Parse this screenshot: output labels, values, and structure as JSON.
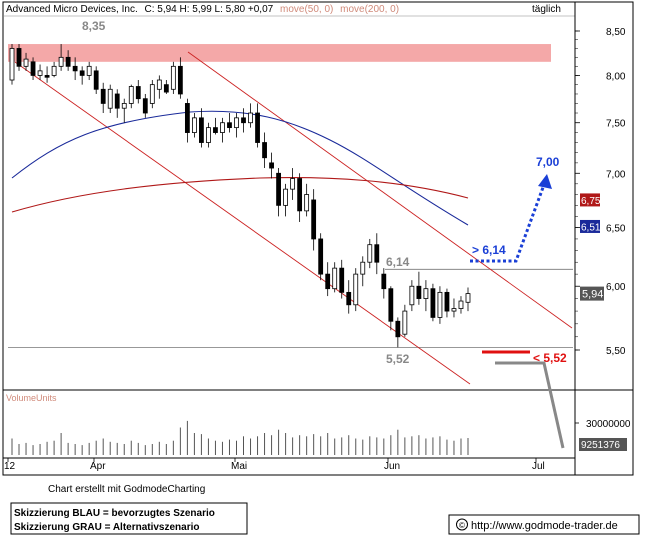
{
  "header": {
    "company": "Advanced Micro Devices, Inc.",
    "quote": "C: 5,94 H: 5,99 L: 5,80 +0,07",
    "ma50_label": "move(50, 0)",
    "ma200_label": "move(200, 0)",
    "period": "täglich"
  },
  "footer": {
    "credit": "Chart erstellt mit GodmodeCharting",
    "legend_blue": "Skizzierung BLAU = bevorzugtes Szenario",
    "legend_grey": "Skizzierung GRAU = Alternativszenario",
    "website": "http://www.godmode-trader.de",
    "copyright_symbol": "©"
  },
  "volume_panel": {
    "title": "VolumeUnits",
    "axis_label": "30000000",
    "last_value_label": "9251376",
    "last_value": 9251376,
    "axis_max": 30000000
  },
  "chart_data": {
    "type": "candlestick",
    "title": "Advanced Micro Devices, Inc.",
    "ylim": [
      5.2,
      8.6
    ],
    "yscale": "log",
    "y_ticks": [
      "8,50",
      "8,00",
      "7,50",
      "7,00",
      "6,50",
      "6,00",
      "5,50"
    ],
    "y_tick_values": [
      8.5,
      8.0,
      7.5,
      7.0,
      6.5,
      6.0,
      5.5
    ],
    "x_ticks": [
      "12",
      "Apr",
      "Mai",
      "Jun",
      "Jul"
    ],
    "grid": false,
    "last_close": 5.94,
    "last_close_label": "5,94",
    "ma50_last": 6.51,
    "ma50_last_label": "6,51",
    "ma200_last": 6.75,
    "ma200_last_label": "6,75",
    "ma50_color": "#1a2a9a",
    "ma200_color": "#b01818",
    "resistance_zone": [
      8.15,
      8.35
    ],
    "annotations": {
      "high_label": "8,35",
      "resistance_label": "6,14",
      "support_label": "5,52",
      "target_blue_label": "7,00",
      "breakout_label": "> 6,14",
      "breakdown_label": "< 5,52"
    },
    "levels": {
      "resistance": 6.14,
      "support": 5.52,
      "target": 7.0,
      "high": 8.35
    },
    "candles": [
      {
        "o": 7.95,
        "h": 8.35,
        "l": 7.9,
        "c": 8.3
      },
      {
        "o": 8.3,
        "h": 8.35,
        "l": 8.05,
        "c": 8.1
      },
      {
        "o": 8.1,
        "h": 8.25,
        "l": 8.05,
        "c": 8.18
      },
      {
        "o": 8.15,
        "h": 8.2,
        "l": 7.95,
        "c": 8.0
      },
      {
        "o": 8.0,
        "h": 8.12,
        "l": 7.95,
        "c": 8.05
      },
      {
        "o": 8.0,
        "h": 8.1,
        "l": 7.92,
        "c": 7.98
      },
      {
        "o": 8.0,
        "h": 8.15,
        "l": 7.98,
        "c": 8.1
      },
      {
        "o": 8.1,
        "h": 8.35,
        "l": 8.05,
        "c": 8.2
      },
      {
        "o": 8.2,
        "h": 8.28,
        "l": 8.05,
        "c": 8.1
      },
      {
        "o": 8.1,
        "h": 8.2,
        "l": 7.95,
        "c": 8.05
      },
      {
        "o": 8.05,
        "h": 8.1,
        "l": 7.9,
        "c": 8.0
      },
      {
        "o": 8.0,
        "h": 8.15,
        "l": 7.95,
        "c": 8.1
      },
      {
        "o": 8.05,
        "h": 8.1,
        "l": 7.8,
        "c": 7.85
      },
      {
        "o": 7.85,
        "h": 7.92,
        "l": 7.6,
        "c": 7.7
      },
      {
        "o": 7.65,
        "h": 7.9,
        "l": 7.6,
        "c": 7.85
      },
      {
        "o": 7.8,
        "h": 7.85,
        "l": 7.55,
        "c": 7.65
      },
      {
        "o": 7.65,
        "h": 7.75,
        "l": 7.5,
        "c": 7.7
      },
      {
        "o": 7.7,
        "h": 7.9,
        "l": 7.65,
        "c": 7.88
      },
      {
        "o": 7.88,
        "h": 7.95,
        "l": 7.7,
        "c": 7.75
      },
      {
        "o": 7.75,
        "h": 7.8,
        "l": 7.55,
        "c": 7.6
      },
      {
        "o": 7.7,
        "h": 7.95,
        "l": 7.65,
        "c": 7.9
      },
      {
        "o": 7.85,
        "h": 8.0,
        "l": 7.75,
        "c": 7.95
      },
      {
        "o": 7.9,
        "h": 7.95,
        "l": 7.8,
        "c": 7.82
      },
      {
        "o": 7.85,
        "h": 8.15,
        "l": 7.8,
        "c": 8.1
      },
      {
        "o": 8.1,
        "h": 8.2,
        "l": 7.75,
        "c": 7.8
      },
      {
        "o": 7.7,
        "h": 7.75,
        "l": 7.3,
        "c": 7.4
      },
      {
        "o": 7.4,
        "h": 7.6,
        "l": 7.35,
        "c": 7.55
      },
      {
        "o": 7.55,
        "h": 7.65,
        "l": 7.25,
        "c": 7.3
      },
      {
        "o": 7.3,
        "h": 7.5,
        "l": 7.25,
        "c": 7.45
      },
      {
        "o": 7.45,
        "h": 7.55,
        "l": 7.38,
        "c": 7.4
      },
      {
        "o": 7.4,
        "h": 7.55,
        "l": 7.3,
        "c": 7.5
      },
      {
        "o": 7.5,
        "h": 7.6,
        "l": 7.4,
        "c": 7.45
      },
      {
        "o": 7.45,
        "h": 7.6,
        "l": 7.35,
        "c": 7.55
      },
      {
        "o": 7.55,
        "h": 7.65,
        "l": 7.4,
        "c": 7.5
      },
      {
        "o": 7.5,
        "h": 7.7,
        "l": 7.45,
        "c": 7.6
      },
      {
        "o": 7.6,
        "h": 7.7,
        "l": 7.25,
        "c": 7.3
      },
      {
        "o": 7.3,
        "h": 7.4,
        "l": 7.05,
        "c": 7.15
      },
      {
        "o": 7.1,
        "h": 7.2,
        "l": 6.95,
        "c": 7.05
      },
      {
        "o": 7.0,
        "h": 7.05,
        "l": 6.6,
        "c": 6.7
      },
      {
        "o": 6.7,
        "h": 6.9,
        "l": 6.6,
        "c": 6.85
      },
      {
        "o": 6.85,
        "h": 7.05,
        "l": 6.75,
        "c": 6.95
      },
      {
        "o": 6.95,
        "h": 7.0,
        "l": 6.55,
        "c": 6.65
      },
      {
        "o": 6.65,
        "h": 6.9,
        "l": 6.6,
        "c": 6.8
      },
      {
        "o": 6.75,
        "h": 6.85,
        "l": 6.3,
        "c": 6.4
      },
      {
        "o": 6.4,
        "h": 6.45,
        "l": 6.05,
        "c": 6.1
      },
      {
        "o": 6.1,
        "h": 6.2,
        "l": 5.92,
        "c": 5.98
      },
      {
        "o": 5.98,
        "h": 6.2,
        "l": 5.95,
        "c": 6.15
      },
      {
        "o": 6.15,
        "h": 6.22,
        "l": 5.9,
        "c": 5.95
      },
      {
        "o": 5.95,
        "h": 6.05,
        "l": 5.78,
        "c": 5.85
      },
      {
        "o": 5.85,
        "h": 6.15,
        "l": 5.8,
        "c": 6.1
      },
      {
        "o": 6.1,
        "h": 6.25,
        "l": 6.0,
        "c": 6.2
      },
      {
        "o": 6.2,
        "h": 6.4,
        "l": 6.15,
        "c": 6.35
      },
      {
        "o": 6.35,
        "h": 6.45,
        "l": 6.1,
        "c": 6.2
      },
      {
        "o": 6.1,
        "h": 6.15,
        "l": 5.9,
        "c": 5.98
      },
      {
        "o": 5.98,
        "h": 6.0,
        "l": 5.65,
        "c": 5.72
      },
      {
        "o": 5.72,
        "h": 5.75,
        "l": 5.52,
        "c": 5.6
      },
      {
        "o": 5.62,
        "h": 5.85,
        "l": 5.6,
        "c": 5.8
      },
      {
        "o": 5.85,
        "h": 6.05,
        "l": 5.8,
        "c": 6.0
      },
      {
        "o": 6.0,
        "h": 6.12,
        "l": 5.85,
        "c": 5.9
      },
      {
        "o": 5.9,
        "h": 6.05,
        "l": 5.8,
        "c": 5.98
      },
      {
        "o": 5.98,
        "h": 6.02,
        "l": 5.72,
        "c": 5.75
      },
      {
        "o": 5.75,
        "h": 6.0,
        "l": 5.7,
        "c": 5.95
      },
      {
        "o": 5.95,
        "h": 5.98,
        "l": 5.75,
        "c": 5.8
      },
      {
        "o": 5.8,
        "h": 5.9,
        "l": 5.75,
        "c": 5.82
      },
      {
        "o": 5.82,
        "h": 5.92,
        "l": 5.78,
        "c": 5.88
      },
      {
        "o": 5.87,
        "h": 5.99,
        "l": 5.8,
        "c": 5.94
      }
    ],
    "volume_relative": [
      0.3,
      0.2,
      0.22,
      0.18,
      0.2,
      0.24,
      0.26,
      0.4,
      0.22,
      0.2,
      0.18,
      0.22,
      0.26,
      0.3,
      0.24,
      0.22,
      0.2,
      0.26,
      0.22,
      0.18,
      0.2,
      0.24,
      0.2,
      0.26,
      0.5,
      0.62,
      0.4,
      0.38,
      0.3,
      0.26,
      0.24,
      0.28,
      0.26,
      0.34,
      0.3,
      0.34,
      0.4,
      0.36,
      0.46,
      0.4,
      0.32,
      0.36,
      0.34,
      0.38,
      0.34,
      0.4,
      0.3,
      0.32,
      0.36,
      0.3,
      0.28,
      0.34,
      0.32,
      0.3,
      0.36,
      0.46,
      0.32,
      0.34,
      0.36,
      0.3,
      0.32,
      0.34,
      0.28,
      0.26,
      0.3,
      0.31
    ]
  }
}
